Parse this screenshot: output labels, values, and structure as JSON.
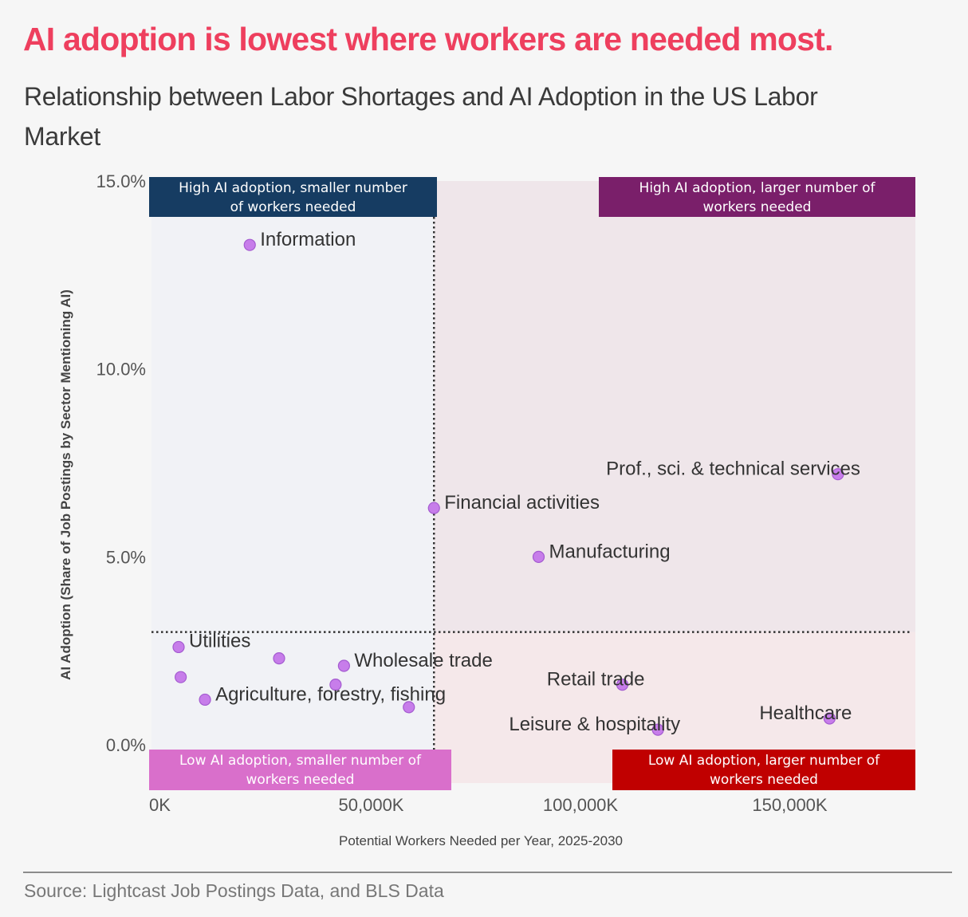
{
  "header": {
    "title": "AI adoption is lowest where workers are needed most.",
    "subtitle": "Relationship between Labor Shortages and AI Adoption in the US Labor Market"
  },
  "footer": {
    "source": "Source: Lightcast Job Postings Data, and BLS Data"
  },
  "colors": {
    "title": "#ee3f5e",
    "point": "#c77dea",
    "point_stroke": "#a45bd0",
    "quadrant_high_small": "#163c62",
    "quadrant_high_large": "#7a1f6a",
    "quadrant_low_small": "#d96fcb",
    "quadrant_low_large": "#c00000",
    "bg_left": "#f1f2f6",
    "bg_right_top": "#efe6ea",
    "bg_right_bottom": "#f5e8ea"
  },
  "chart_data": {
    "type": "scatter",
    "title": "AI adoption is lowest where workers are needed most.",
    "subtitle": "Relationship between Labor Shortages and AI Adoption in the US Labor Market",
    "xlabel": "Potential Workers Needed per Year, 2025-2030",
    "ylabel": "AI Adoption (Share of Job Postings by Sector Mentioning AI)",
    "xlim": [
      0,
      180000
    ],
    "ylim": [
      0,
      15
    ],
    "x_ticks": [
      {
        "value": 0,
        "label": "0K"
      },
      {
        "value": 50000,
        "label": "50,000K"
      },
      {
        "value": 100000,
        "label": "100,000K"
      },
      {
        "value": 150000,
        "label": "150,000K"
      }
    ],
    "y_ticks": [
      {
        "value": 0,
        "label": "0.0%"
      },
      {
        "value": 5,
        "label": "5.0%"
      },
      {
        "value": 10,
        "label": "10.0%"
      },
      {
        "value": 15,
        "label": "15.0%"
      }
    ],
    "grid": false,
    "quadrant_split": {
      "x": 65000,
      "y": 3.0
    },
    "quadrants": [
      {
        "id": "high-small",
        "label": [
          "High AI adoption, smaller number",
          "of workers  needed"
        ],
        "position": "top-left"
      },
      {
        "id": "high-large",
        "label": [
          "High AI adoption, larger number of",
          "workers needed"
        ],
        "position": "top-right"
      },
      {
        "id": "low-small",
        "label": [
          "Low AI adoption, smaller number of",
          "workers needed"
        ],
        "position": "bottom-left"
      },
      {
        "id": "low-large",
        "label": [
          "Low AI adoption, larger number of",
          "workers needed"
        ],
        "position": "bottom-right"
      }
    ],
    "points": [
      {
        "label": "Information",
        "x": 21000,
        "y": 13.3,
        "label_pos": "right"
      },
      {
        "label": "Financial activities",
        "x": 65000,
        "y": 6.3,
        "label_pos": "right"
      },
      {
        "label": "Manufacturing",
        "x": 90000,
        "y": 5.0,
        "label_pos": "right"
      },
      {
        "label": "Prof., sci. & technical services",
        "x": 161500,
        "y": 7.2,
        "label_pos": "left-above"
      },
      {
        "label": "Utilities",
        "x": 4000,
        "y": 2.6,
        "label_pos": "right-above"
      },
      {
        "label": "",
        "x": 28000,
        "y": 2.3,
        "label_pos": "none"
      },
      {
        "label": "Wholesale trade",
        "x": 43500,
        "y": 2.1,
        "label_pos": "right"
      },
      {
        "label": "",
        "x": 4500,
        "y": 1.8,
        "label_pos": "none"
      },
      {
        "label": "",
        "x": 41500,
        "y": 1.6,
        "label_pos": "none"
      },
      {
        "label": "Agriculture, forestry, fishing",
        "x": 10300,
        "y": 1.2,
        "label_pos": "right"
      },
      {
        "label": "",
        "x": 59000,
        "y": 1.0,
        "label_pos": "none"
      },
      {
        "label": "Retail trade",
        "x": 110000,
        "y": 1.6,
        "label_pos": "left-above"
      },
      {
        "label": "Leisure & hospitality",
        "x": 118500,
        "y": 0.4,
        "label_pos": "left-above"
      },
      {
        "label": "Healthcare",
        "x": 159500,
        "y": 0.7,
        "label_pos": "left-above"
      }
    ]
  }
}
